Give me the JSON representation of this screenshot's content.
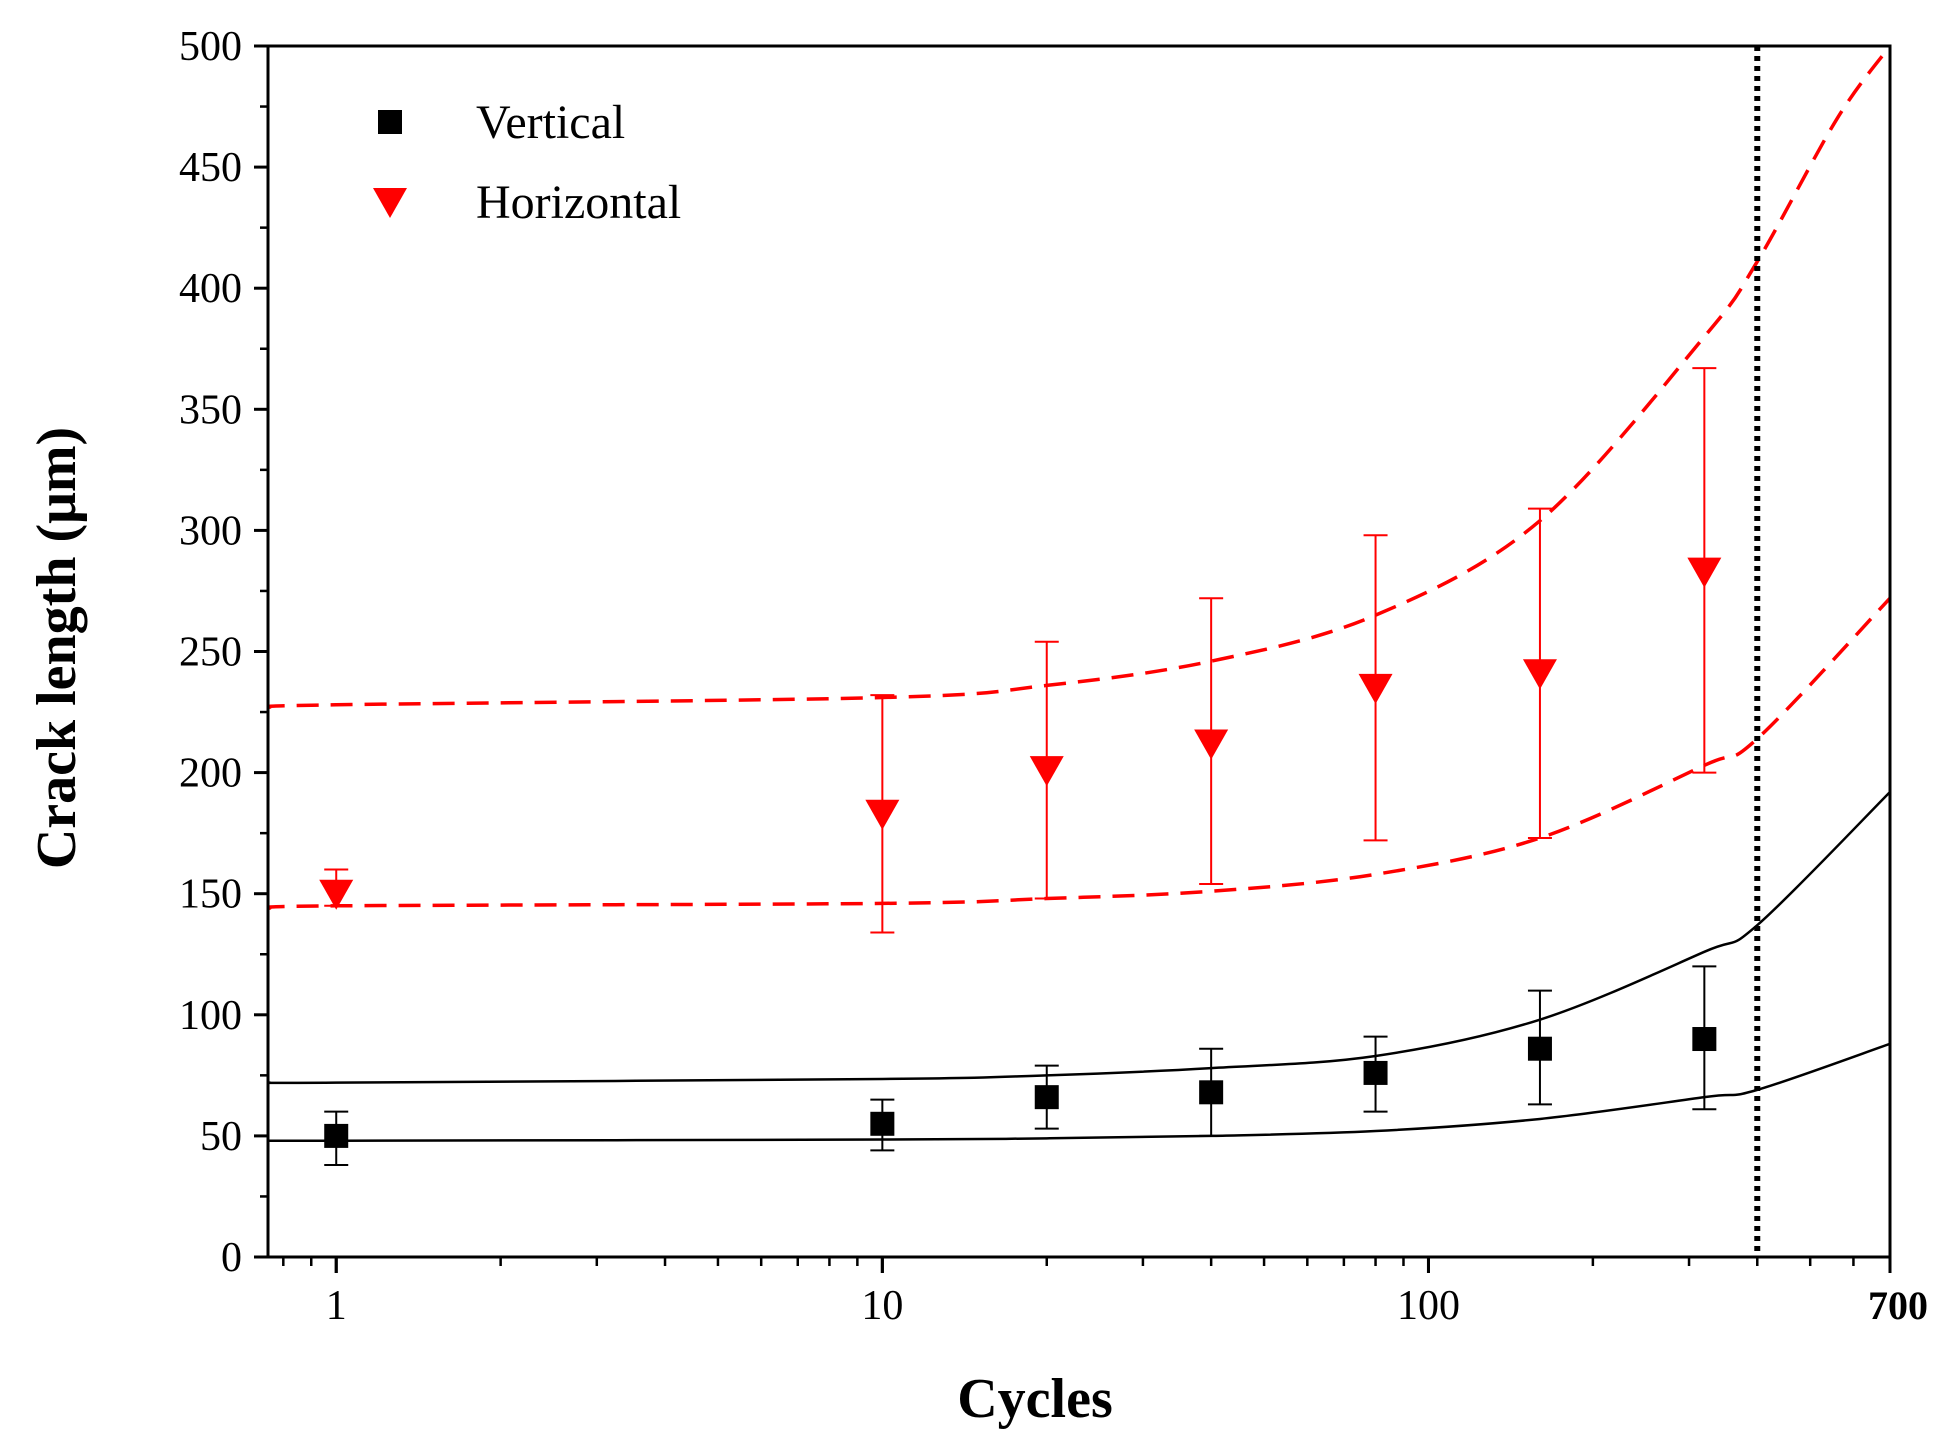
{
  "chart_data": {
    "type": "scatter",
    "title": "",
    "xlabel": "Cycles",
    "ylabel": "Crack length (μm)",
    "xscale": "log",
    "xlim": [
      0.75,
      700
    ],
    "ylim": [
      0,
      500
    ],
    "x_tick_labels": [
      {
        "value": 1,
        "label": "1",
        "bold": false
      },
      {
        "value": 10,
        "label": "10",
        "bold": false
      },
      {
        "value": 100,
        "label": "100",
        "bold": false
      },
      {
        "value": 700,
        "label": "700",
        "bold": true
      }
    ],
    "y_ticks": [
      0,
      50,
      100,
      150,
      200,
      250,
      300,
      350,
      400,
      450,
      500
    ],
    "legend_position": "top-left",
    "series": [
      {
        "name": "Vertical",
        "color": "#000000",
        "marker": "square",
        "x": [
          1,
          10,
          20,
          40,
          80,
          160,
          320
        ],
        "y": [
          50,
          55,
          66,
          68,
          76,
          86,
          90
        ],
        "err_low": [
          38,
          44,
          53,
          50,
          60,
          63,
          61
        ],
        "err_high": [
          60,
          65,
          79,
          86,
          91,
          110,
          120
        ]
      },
      {
        "name": "Horizontal",
        "color": "#ff0000",
        "marker": "triangle-down",
        "x": [
          1,
          10,
          20,
          40,
          80,
          160,
          320
        ],
        "y": [
          150,
          183,
          201,
          212,
          235,
          241,
          283
        ],
        "err_low": [
          145,
          134,
          148,
          154,
          172,
          173,
          200
        ],
        "err_high": [
          160,
          232,
          254,
          272,
          298,
          309,
          367
        ]
      }
    ],
    "fit_curves": [
      {
        "name": "vertical-upper-bound",
        "color": "#000000",
        "style": "solid",
        "x": [
          0.75,
          1,
          10,
          20,
          40,
          80,
          160,
          320,
          400,
          700
        ],
        "y": [
          72,
          72,
          73.5,
          75,
          78,
          83,
          98,
          126,
          137,
          192
        ]
      },
      {
        "name": "vertical-lower-bound",
        "color": "#000000",
        "style": "solid",
        "x": [
          0.75,
          1,
          10,
          20,
          40,
          80,
          160,
          320,
          400,
          700
        ],
        "y": [
          48,
          48,
          48.5,
          49,
          50,
          52,
          57,
          66,
          69,
          88
        ]
      },
      {
        "name": "horizontal-upper-bound",
        "color": "#ff0000",
        "style": "dashed",
        "x": [
          0.75,
          1,
          10,
          20,
          40,
          80,
          160,
          320,
          400,
          560,
          700
        ],
        "y": [
          227,
          228,
          231,
          236,
          246,
          265,
          304,
          380,
          411,
          470,
          500
        ]
      },
      {
        "name": "horizontal-lower-bound",
        "color": "#ff0000",
        "style": "dashed",
        "x": [
          0.75,
          1,
          10,
          20,
          40,
          80,
          160,
          320,
          400,
          700
        ],
        "y": [
          144,
          145,
          146,
          148,
          151,
          158,
          173,
          203,
          214,
          272
        ]
      }
    ],
    "reference_line": {
      "x": 400,
      "color": "#000000",
      "style": "dotted"
    }
  }
}
